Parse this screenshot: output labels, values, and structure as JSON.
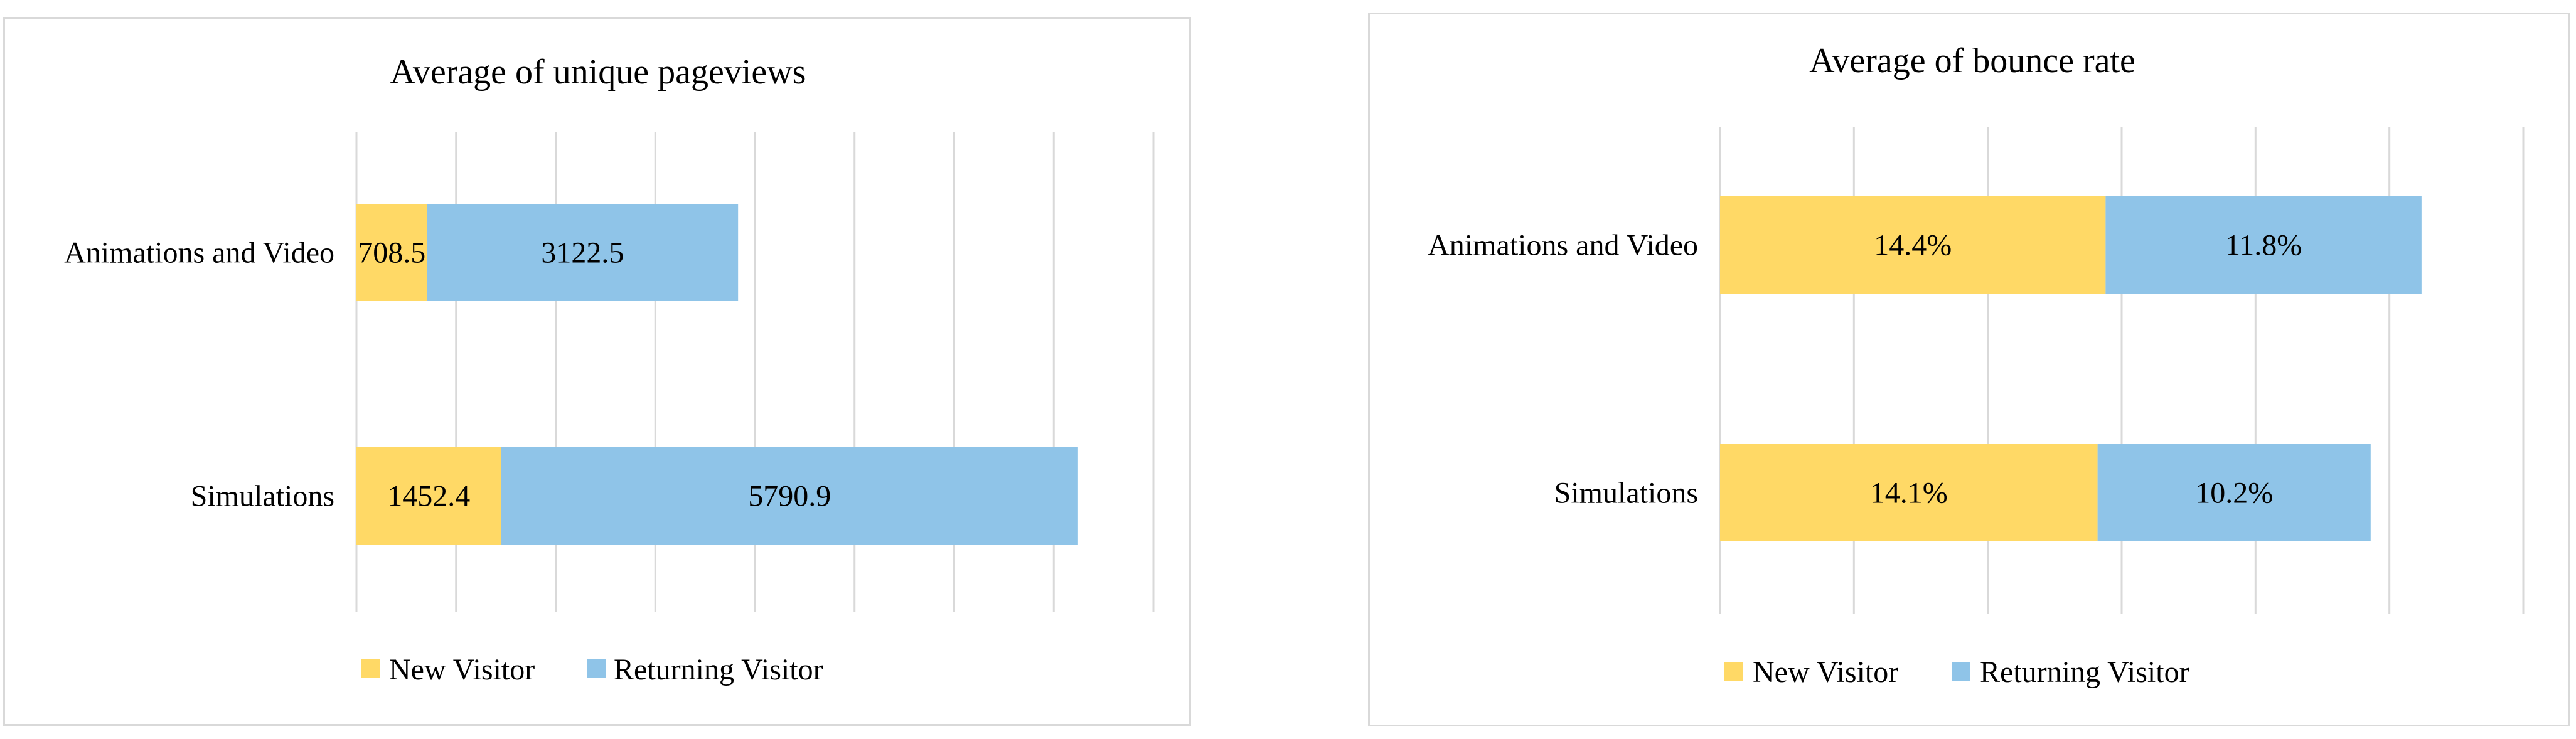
{
  "chart_data": [
    {
      "type": "bar",
      "orientation": "horizontal",
      "stacked": true,
      "title": "Average  of unique pageviews",
      "categories": [
        "Animations and Video",
        "Simulations"
      ],
      "series": [
        {
          "name": "New Visitor",
          "values": [
            708.5,
            1452.4
          ],
          "labels": [
            "708.5",
            "1452.4"
          ],
          "color": "#FFD966"
        },
        {
          "name": "Returning Visitor",
          "values": [
            3122.5,
            5790.9
          ],
          "labels": [
            "3122.5",
            "5790.9"
          ],
          "color": "#8FC4E8"
        }
      ],
      "xlim": [
        0,
        8000
      ],
      "gridlines": 8,
      "grid": true,
      "legend_position": "bottom"
    },
    {
      "type": "bar",
      "orientation": "horizontal",
      "stacked": true,
      "title": "Average  of bounce rate",
      "categories": [
        "Animations and Video",
        "Simulations"
      ],
      "series": [
        {
          "name": "New Visitor",
          "values": [
            14.4,
            14.1
          ],
          "labels": [
            "14.4%",
            "14.1%"
          ],
          "color": "#FFD966"
        },
        {
          "name": "Returning Visitor",
          "values": [
            11.8,
            10.2
          ],
          "labels": [
            "11.8%",
            "10.2%"
          ],
          "color": "#8FC4E8"
        }
      ],
      "xlim": [
        0,
        30
      ],
      "gridlines": 6,
      "grid": true,
      "legend_position": "bottom"
    }
  ]
}
